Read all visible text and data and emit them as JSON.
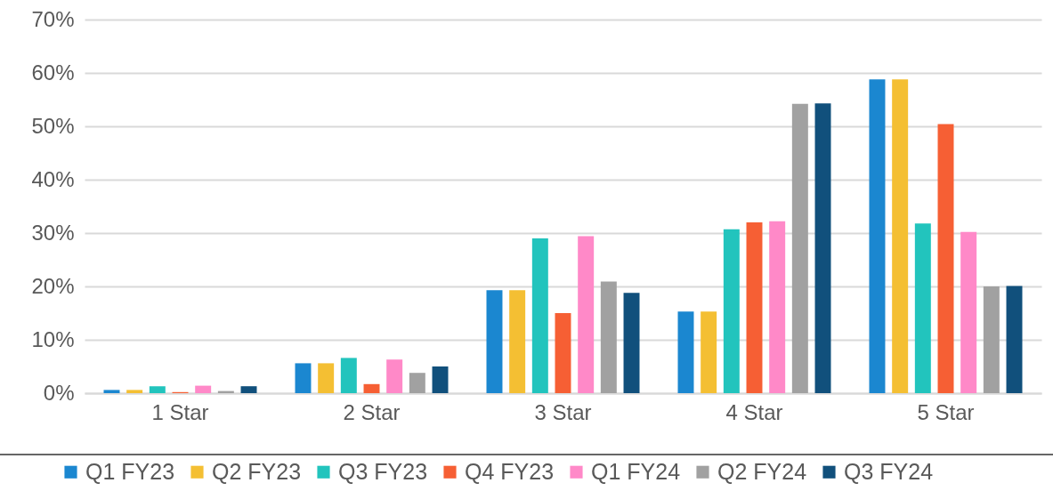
{
  "chart_data": {
    "type": "bar",
    "categories": [
      "1 Star",
      "2 Star",
      "3 Star",
      "4 Star",
      "5 Star"
    ],
    "series": [
      {
        "name": "Q1 FY23",
        "color": "#1b87d0",
        "values": [
          0.6,
          5.6,
          19.3,
          15.3,
          58.8
        ]
      },
      {
        "name": "Q2 FY23",
        "color": "#f4bf33",
        "values": [
          0.6,
          5.6,
          19.3,
          15.3,
          58.8
        ]
      },
      {
        "name": "Q3 FY23",
        "color": "#22c4bd",
        "values": [
          1.3,
          6.6,
          29.0,
          30.7,
          31.8
        ]
      },
      {
        "name": "Q4 FY23",
        "color": "#f65f34",
        "values": [
          0.2,
          1.7,
          15.0,
          32.0,
          50.4
        ]
      },
      {
        "name": "Q1 FY24",
        "color": "#ff89c8",
        "values": [
          1.4,
          6.3,
          29.4,
          32.2,
          30.2
        ]
      },
      {
        "name": "Q2 FY24",
        "color": "#a1a1a1",
        "values": [
          0.4,
          3.8,
          20.9,
          54.2,
          20.0
        ]
      },
      {
        "name": "Q3 FY24",
        "color": "#11507c",
        "values": [
          1.3,
          5.0,
          18.8,
          54.3,
          20.1
        ]
      }
    ],
    "ylim": [
      0,
      70
    ],
    "yticks": [
      {
        "value": 0,
        "label": "0%"
      },
      {
        "value": 10,
        "label": "10%"
      },
      {
        "value": 20,
        "label": "20%"
      },
      {
        "value": 30,
        "label": "30%"
      },
      {
        "value": 40,
        "label": "40%"
      },
      {
        "value": 50,
        "label": "50%"
      },
      {
        "value": 60,
        "label": "60%"
      },
      {
        "value": 70,
        "label": "70%"
      }
    ],
    "grid": "y",
    "legend": "bottom"
  }
}
